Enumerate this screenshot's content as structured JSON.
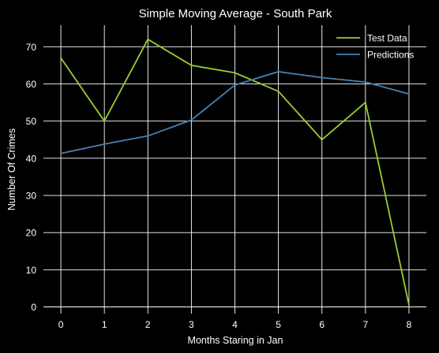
{
  "chart_data": {
    "type": "line",
    "title": "Simple Moving Average - South Park",
    "xlabel": "Months Staring in Jan",
    "ylabel": "Number Of Crimes",
    "x": [
      0,
      1,
      2,
      3,
      4,
      5,
      6,
      7,
      8
    ],
    "xticks": [
      0,
      1,
      2,
      3,
      4,
      5,
      6,
      7,
      8
    ],
    "yticks": [
      0,
      10,
      20,
      30,
      40,
      50,
      60,
      70
    ],
    "xlim": [
      -0.4,
      8.4
    ],
    "ylim": [
      -1.8,
      75.8
    ],
    "grid": true,
    "legend": "top-right",
    "series": [
      {
        "name": "Test Data",
        "color": "#9acd32",
        "values": [
          67,
          50,
          72,
          65,
          63,
          58,
          45,
          55,
          0.5
        ]
      },
      {
        "name": "Predictions",
        "color": "#4682b4",
        "values": [
          41.3,
          43.8,
          46,
          50.3,
          59.7,
          63.3,
          61.7,
          60.5,
          57.3
        ]
      }
    ]
  }
}
